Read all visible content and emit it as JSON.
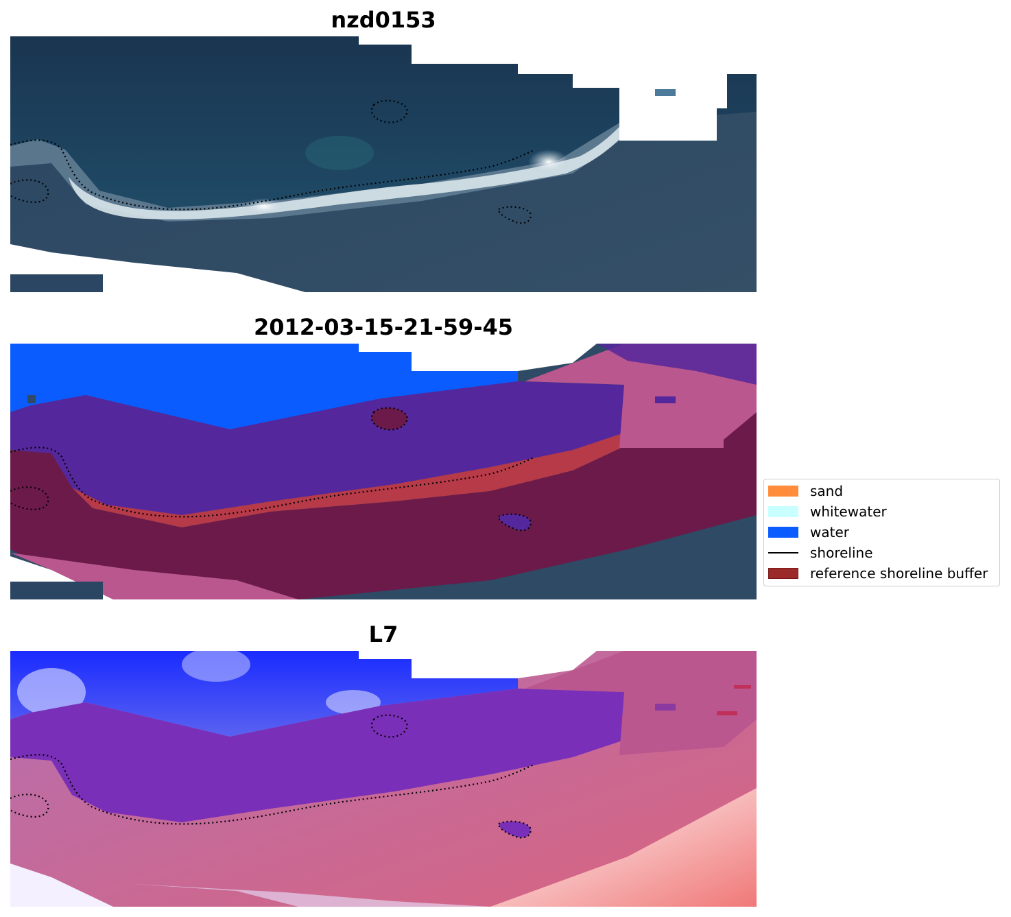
{
  "panels": [
    {
      "title": "nzd0153"
    },
    {
      "title": "2012-03-15-21-59-45"
    },
    {
      "title": "L7"
    }
  ],
  "legend": {
    "items": [
      {
        "label": "sand",
        "color": "#ff8c3a",
        "kind": "patch"
      },
      {
        "label": "whitewater",
        "color": "#c8ffff",
        "kind": "patch"
      },
      {
        "label": "water",
        "color": "#0b5cff",
        "kind": "patch"
      },
      {
        "label": "shoreline",
        "color": "#000000",
        "kind": "line"
      },
      {
        "label": "reference shoreline buffer",
        "color": "#9b2a2a",
        "kind": "patch"
      }
    ]
  },
  "colors": {
    "water": "#0b5cff",
    "reference_buffer": "#9b2a2a",
    "sand": "#ff8c3a",
    "whitewater": "#c8ffff",
    "shoreline": "#000000"
  }
}
